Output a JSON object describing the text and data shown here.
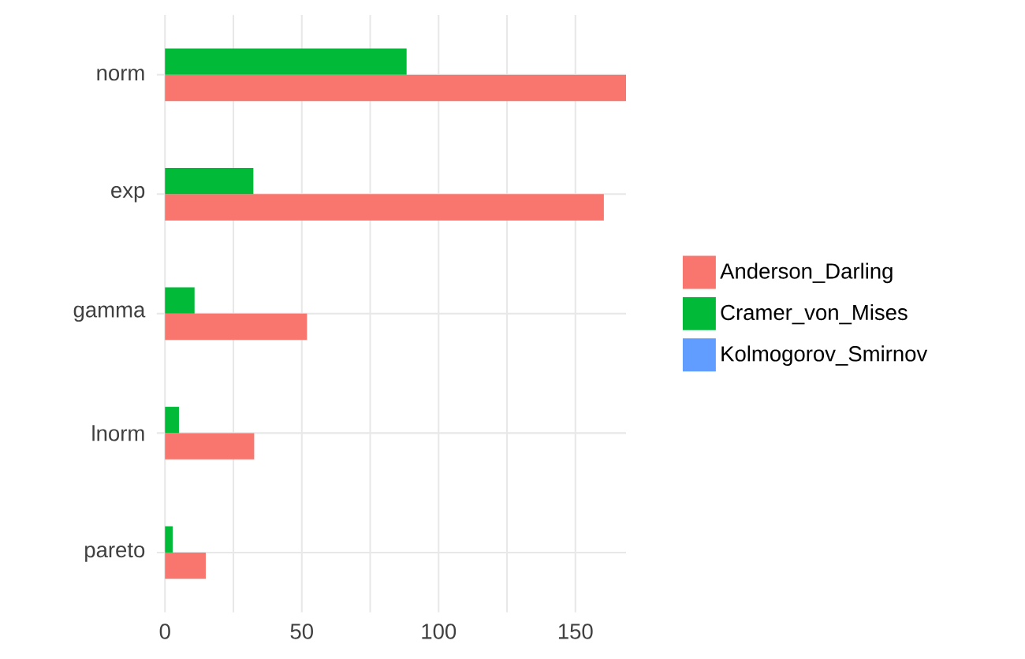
{
  "chart_data": {
    "type": "bar",
    "orientation": "horizontal",
    "categories": [
      "norm",
      "exp",
      "gamma",
      "lnorm",
      "pareto"
    ],
    "series": [
      {
        "name": "Anderson_Darling",
        "color": "#f8766d",
        "values": [
          168.5,
          160.4,
          51.9,
          32.6,
          14.9
        ]
      },
      {
        "name": "Cramer_von_Mises",
        "color": "#00ba38",
        "values": [
          88.3,
          32.3,
          10.8,
          5.1,
          2.8
        ]
      },
      {
        "name": "Kolmogorov_Smirnov",
        "color": "#619cff",
        "values": [
          null,
          null,
          null,
          null,
          null
        ]
      }
    ],
    "xlim": [
      -3,
      168.5
    ],
    "xticks": [
      0,
      {
        "value": 25,
        "label": null
      },
      50,
      {
        "value": 75,
        "label": null
      },
      100,
      {
        "value": 125,
        "label": null
      },
      150
    ],
    "grid": true,
    "legend": "right"
  }
}
